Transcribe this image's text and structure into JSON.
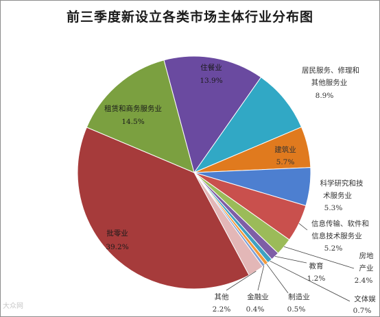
{
  "chart_data": {
    "type": "pie",
    "title": "前三季度新设立各类市场主体行业分布图",
    "slices": [
      {
        "name": "居民服务、修理和其他服务业",
        "pct_label": "8.9%",
        "value": 8.9,
        "color": "#31a8c5"
      },
      {
        "name": "建筑业",
        "pct_label": "5.7%",
        "value": 5.7,
        "color": "#e07a1e"
      },
      {
        "name": "科学研究和技术服务业",
        "pct_label": "5.3%",
        "value": 5.3,
        "color": "#4d7fd0"
      },
      {
        "name": "信息传输、软件和信息技术服务业",
        "pct_label": "5.2%",
        "value": 5.2,
        "color": "#c9504d"
      },
      {
        "name": "房地产业",
        "pct_label": "2.4%",
        "value": 2.4,
        "color": "#9bbb59"
      },
      {
        "name": "教育",
        "pct_label": "1.2%",
        "value": 1.2,
        "color": "#7e5ea6"
      },
      {
        "name": "文体娱",
        "pct_label": "0.7%",
        "value": 0.7,
        "color": "#3fa1c2"
      },
      {
        "name": "制造业",
        "pct_label": "0.5%",
        "value": 0.5,
        "color": "#f29a3e"
      },
      {
        "name": "金融业",
        "pct_label": "0.4%",
        "value": 0.4,
        "color": "#7fa0d6"
      },
      {
        "name": "其他",
        "pct_label": "2.2%",
        "value": 2.2,
        "color": "#e3b7b7"
      },
      {
        "name": "批零业",
        "pct_label": "39.2%",
        "value": 39.2,
        "color": "#a63b3b"
      },
      {
        "name": "租赁和商务服务业",
        "pct_label": "14.5%",
        "value": 14.5,
        "color": "#7ba040"
      },
      {
        "name": "住餐业",
        "pct_label": "13.9%",
        "value": 13.9,
        "color": "#6a4aa0"
      }
    ]
  },
  "labels": {
    "jumin_l1": "居民服务、修理和",
    "jumin_l2": "其他服务业",
    "jumin_pct": "8.9%",
    "jianzhu": "建筑业",
    "jianzhu_pct": "5.7%",
    "keyan_l1": "科学研究和技",
    "keyan_l2": "术服务业",
    "keyan_pct": "5.3%",
    "xinxi_l1": "信息传输、软件和",
    "xinxi_l2": "信息技术服务业",
    "xinxi_pct": "5.2%",
    "fangdi_l1": "房地",
    "fangdi_l2": "产业",
    "fangdi_pct": "2.4%",
    "jiaoyu": "教育",
    "jiaoyu_pct": "1.2%",
    "wenti": "文体娱",
    "wenti_pct": "0.7%",
    "zhizao": "制造业",
    "zhizao_pct": "0.5%",
    "jinrong": "金融业",
    "jinrong_pct": "0.4%",
    "qita": "其他",
    "qita_pct": "2.2%",
    "piling": "批零业",
    "piling_pct": "39.2%",
    "zulin": "租赁和商务服务业",
    "zulin_pct": "14.5%",
    "zhucan": "住餐业",
    "zhucan_pct": "13.9%"
  },
  "watermark": "大众网"
}
